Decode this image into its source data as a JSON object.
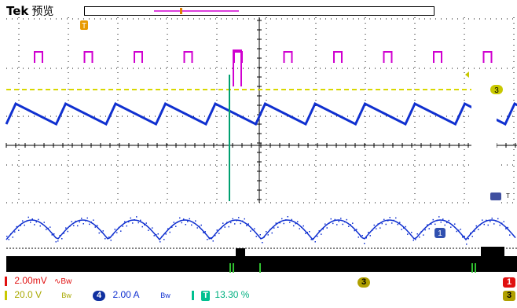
{
  "header": {
    "brand": "Tek",
    "mode": "预览"
  },
  "markers": {
    "trigger_position": "T",
    "ch3_level_badge": "3",
    "ref_badge": "1",
    "time_cursor": "T",
    "time_cursor_right": "T"
  },
  "channels": {
    "ch1": {
      "badge": "1",
      "scale": "2.00mV",
      "color": "#e01010"
    },
    "ch2": {
      "color": "#d000d0"
    },
    "ch3": {
      "badge": "3",
      "scale": "20.0 V",
      "color": "#c8c800"
    },
    "ch4": {
      "badge": "4",
      "scale": "2.00 A",
      "color": "#1030d0"
    },
    "math": {
      "badge": "3"
    }
  },
  "status": {
    "cursor_label": "T",
    "cursor_value": "13.30 %",
    "center_label": "3",
    "right_label_1": "1",
    "right_label_3": "3"
  },
  "icons": {
    "ch1_bw": "∿Bw",
    "ch3_bw": "Bw",
    "ch4_bw": "Bw"
  }
}
